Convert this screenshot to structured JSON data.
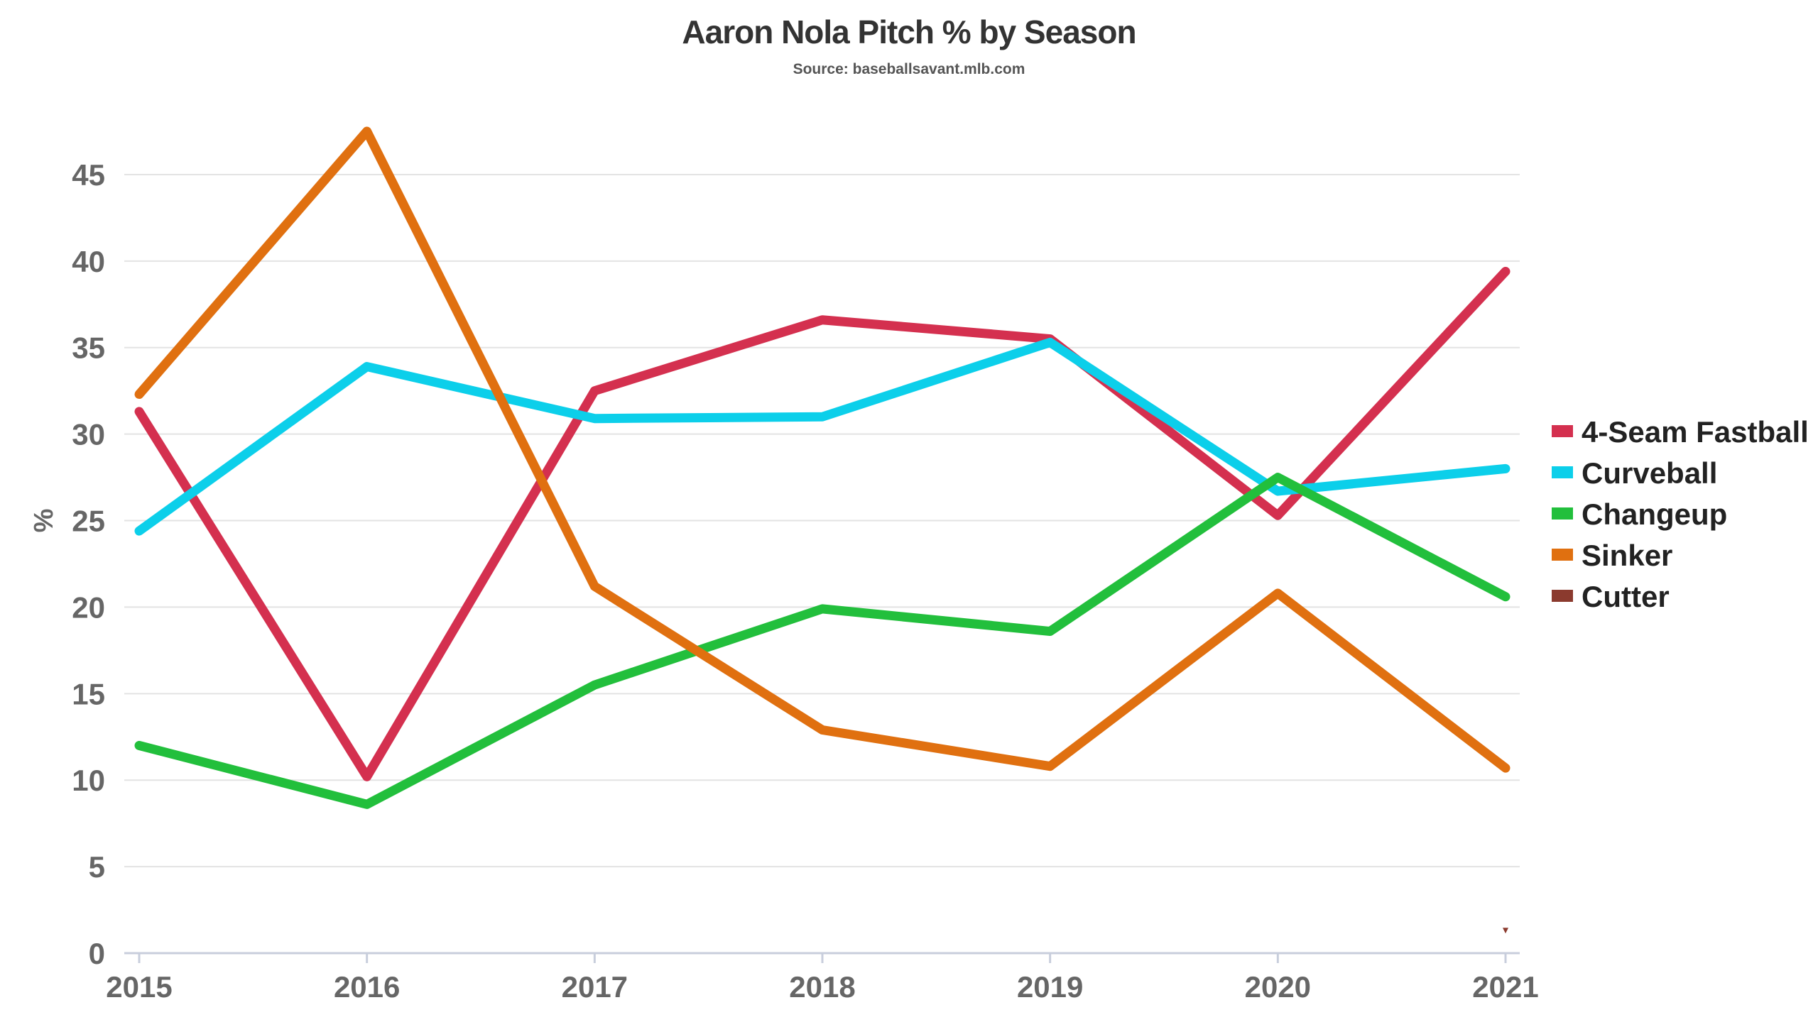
{
  "chart_data": {
    "type": "line",
    "title": "Aaron Nola Pitch % by Season",
    "subtitle": "Source: baseballsavant.mlb.com",
    "xlabel": "",
    "ylabel": "%",
    "x": [
      "2015",
      "2016",
      "2017",
      "2018",
      "2019",
      "2020",
      "2021"
    ],
    "ylim": [
      0,
      47.5
    ],
    "yticks": [
      0,
      5,
      10,
      15,
      20,
      25,
      30,
      35,
      40,
      45
    ],
    "grid": true,
    "legend_position": "right",
    "series": [
      {
        "name": "4-Seam Fastball",
        "color": "#d4304f",
        "values": [
          31.3,
          10.2,
          32.5,
          36.6,
          35.5,
          25.3,
          39.4
        ]
      },
      {
        "name": "Curveball",
        "color": "#0ccfea",
        "values": [
          24.4,
          33.9,
          30.9,
          31.0,
          35.3,
          26.7,
          28.0
        ]
      },
      {
        "name": "Changeup",
        "color": "#22bf3c",
        "values": [
          12.0,
          8.6,
          15.5,
          19.9,
          18.6,
          27.5,
          20.6
        ]
      },
      {
        "name": "Sinker",
        "color": "#e07010",
        "values": [
          32.3,
          47.5,
          21.2,
          12.9,
          10.8,
          20.8,
          10.7
        ]
      },
      {
        "name": "Cutter",
        "color": "#8b3a2e",
        "values": [
          null,
          null,
          null,
          null,
          null,
          null,
          1.3
        ]
      }
    ]
  }
}
